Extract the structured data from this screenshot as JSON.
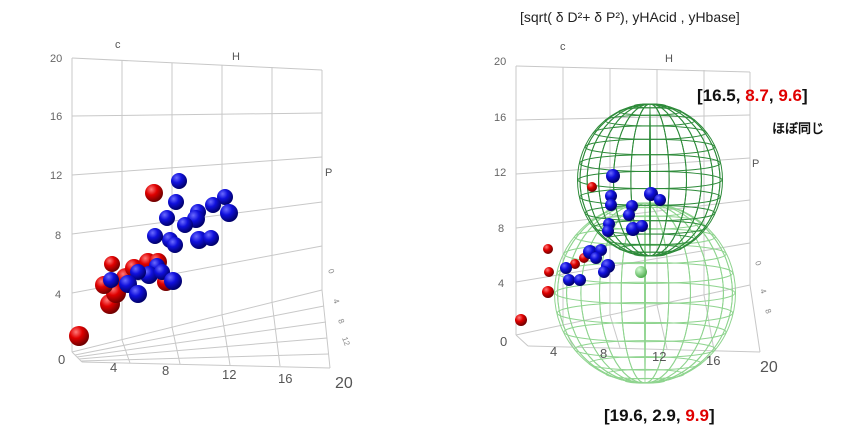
{
  "header": {
    "formula": "[sqrt( δ D²+ δ P²), yHAcid , yHbase]"
  },
  "colors": {
    "red_series": "#dd0000",
    "blue_series": "#0000cc",
    "sphere_dark": "#2e8b3a",
    "sphere_light": "#8fd48f",
    "highlight": "#e00000"
  },
  "left_plot": {
    "axis_letters": {
      "c": "c",
      "h": "H",
      "p": "P"
    },
    "y_ticks": [
      "20",
      "16",
      "12",
      "8",
      "4",
      "0"
    ],
    "x_ticks": [
      "4",
      "8",
      "12",
      "16",
      "20"
    ]
  },
  "right_plot": {
    "axis_letters": {
      "c": "c",
      "h": "H",
      "p": "P"
    },
    "y_ticks": [
      "20",
      "16",
      "12",
      "8",
      "4",
      "0"
    ],
    "x_ticks": [
      "4",
      "8",
      "12",
      "16",
      "20"
    ],
    "label_top": {
      "open": "[",
      "v1": "16.5",
      "sep1": ", ",
      "v2": "8.7",
      "sep2": ", ",
      "v3": "9.6",
      "close": "]"
    },
    "label_bottom": {
      "open": "[",
      "v1": "19.6",
      "sep1": ", ",
      "v2": "2.9",
      "sep2": ", ",
      "v3": "9.9",
      "close": "]"
    },
    "note": "ほぼ同じ"
  },
  "chart_data": [
    {
      "type": "scatter",
      "title": "",
      "xlabel": "",
      "ylabel": "",
      "ylim": [
        0,
        20
      ],
      "series": [
        {
          "color": "red",
          "points": 11
        },
        {
          "color": "blue",
          "points": 22
        }
      ]
    },
    {
      "type": "scatter",
      "title": "[sqrt( δ D²+ δ P²), yHAcid , yHbase]",
      "ylim": [
        0,
        20
      ],
      "spheres": [
        {
          "center": [
            16.5,
            8.7,
            9.6
          ]
        },
        {
          "center": [
            19.6,
            2.9,
            9.9
          ]
        }
      ]
    }
  ]
}
